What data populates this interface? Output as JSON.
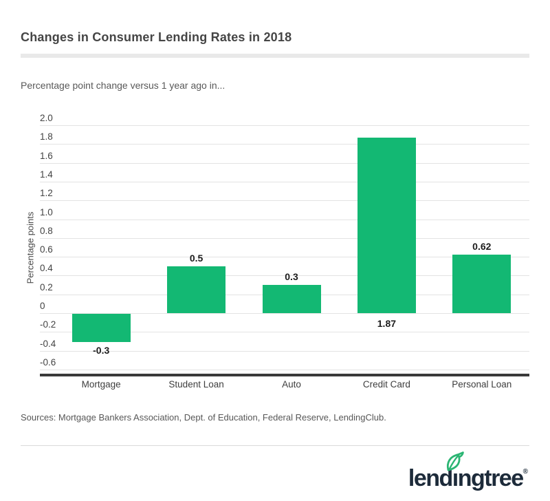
{
  "header": {
    "title": "Changes in Consumer Lending Rates in 2018",
    "subtitle": "Percentage point change versus 1 year ago in..."
  },
  "chart_data": {
    "type": "bar",
    "title": "Changes in Consumer Lending Rates in 2018",
    "categories": [
      "Mortgage",
      "Student Loan",
      "Auto",
      "Credit Card",
      "Personal Loan"
    ],
    "values": [
      -0.3,
      0.5,
      0.3,
      1.87,
      0.62
    ],
    "value_labels": [
      "-0.3",
      "0.5",
      "0.3",
      "1.87",
      "0.62"
    ],
    "xlabel": "",
    "ylabel": "Percentage points",
    "ylim": [
      -0.6,
      2.0
    ],
    "ytick_step": 0.2,
    "ytick_labels": [
      "2.0",
      "1.8",
      "1.6",
      "1.4",
      "1.2",
      "1.0",
      "0.8",
      "0.6",
      "0.4",
      "0.2",
      "0",
      "-0.2",
      "-0.4",
      "-0.6"
    ],
    "grid": true,
    "legend_position": "none",
    "bar_color": "#13b873"
  },
  "footer": {
    "sources": "Sources: Mortgage Bankers Association, Dept. of Education, Federal Reserve, LendingClub.",
    "logo_text": "lendıngtree",
    "logo_registered": "®"
  },
  "colors": {
    "bar": "#13b873",
    "logo_navy": "#1d2b3a",
    "leaf_green": "#2bb573",
    "axis_line": "#3a3a3a",
    "gridline": "#e3e3e3"
  }
}
